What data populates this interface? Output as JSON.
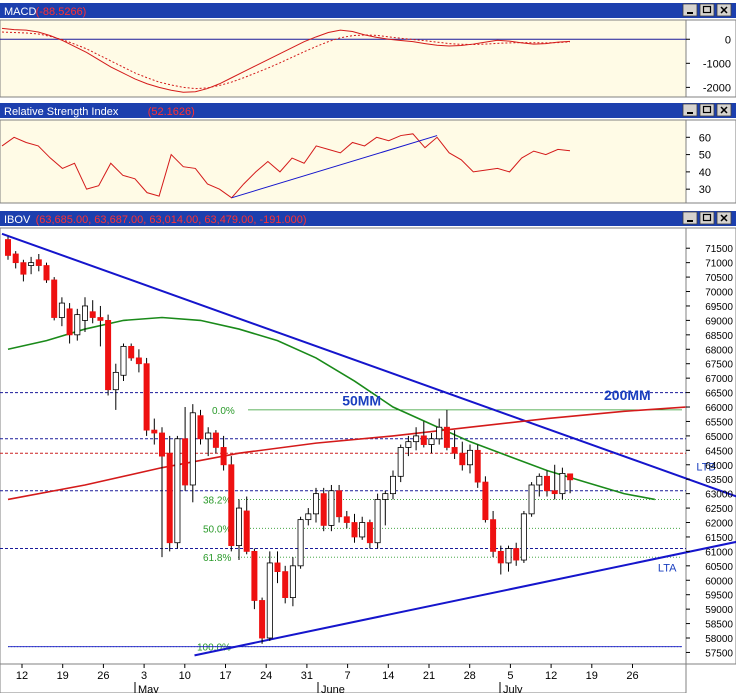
{
  "colors": {
    "title_bar": "#1c3fae",
    "panel_bg": "#fffbe6",
    "up": "#ffffff",
    "down": "#ee1111",
    "line_red": "#d41a1a",
    "ma50": "#1a8a1a",
    "ma200": "#d41a1a",
    "trend": "#1515cc",
    "fib": "#2a9a2a",
    "hline_blue": "#1a1a99",
    "hline_red": "#cc2222"
  },
  "panels": [
    {
      "id": "macd",
      "label": "MACD",
      "value": "(-88.5266)"
    },
    {
      "id": "rsi",
      "label": "Relative Strength Index",
      "value": "(52.1626)"
    },
    {
      "id": "price",
      "label": "IBOV",
      "value": "(63,685.00, 63,687.00, 63,014.00, 63,479.00, -191.000)"
    }
  ],
  "window_icons": [
    "minimize-icon",
    "maximize-icon",
    "close-icon"
  ],
  "chart_data": [
    {
      "type": "line",
      "panel": "macd",
      "ylim": [
        -2400,
        800
      ],
      "y_ticks": [
        "0",
        "-1000",
        "-2000"
      ],
      "x": [
        0,
        2,
        4,
        6,
        8,
        10,
        12,
        14,
        16,
        18,
        20,
        22,
        24,
        26,
        28,
        30,
        32,
        34,
        36,
        38,
        40,
        42,
        44,
        46,
        48,
        50,
        52,
        54,
        56,
        58,
        60,
        62,
        64,
        66,
        68,
        70,
        72,
        74,
        76,
        78,
        80,
        82,
        84,
        86,
        88,
        90,
        92,
        94
      ],
      "series": [
        {
          "values": [
            450,
            400,
            380,
            300,
            150,
            -50,
            -300,
            -550,
            -850,
            -1150,
            -1400,
            -1650,
            -1850,
            -2000,
            -2120,
            -2200,
            -2180,
            -2050,
            -1850,
            -1600,
            -1350,
            -1100,
            -850,
            -600,
            -350,
            -100,
            100,
            280,
            380,
            320,
            180,
            80,
            0,
            -50,
            -100,
            -180,
            -250,
            -280,
            -260,
            -200,
            -120,
            -40,
            -80,
            -150,
            -200,
            -180,
            -120,
            -88.5
          ],
          "style": "solid"
        },
        {
          "values": [
            300,
            280,
            260,
            220,
            120,
            -20,
            -200,
            -400,
            -650,
            -900,
            -1150,
            -1400,
            -1600,
            -1780,
            -1900,
            -2000,
            -2050,
            -2020,
            -1920,
            -1780,
            -1600,
            -1400,
            -1200,
            -980,
            -750,
            -520,
            -300,
            -100,
            60,
            150,
            180,
            160,
            100,
            40,
            -10,
            -60,
            -120,
            -180,
            -210,
            -220,
            -200,
            -170,
            -150,
            -140,
            -145,
            -150,
            -140,
            -110
          ],
          "style": "dashed"
        }
      ]
    },
    {
      "type": "line",
      "panel": "rsi",
      "ylim": [
        22,
        70
      ],
      "y_ticks": [
        "60",
        "50",
        "40",
        "30"
      ],
      "x": [
        0,
        2,
        4,
        6,
        8,
        10,
        12,
        14,
        16,
        18,
        20,
        22,
        24,
        26,
        28,
        30,
        32,
        34,
        36,
        38,
        40,
        42,
        44,
        46,
        48,
        50,
        52,
        54,
        56,
        58,
        60,
        62,
        64,
        66,
        68,
        70,
        72,
        74,
        76,
        78,
        80,
        82,
        84,
        86,
        88,
        90,
        92,
        94
      ],
      "series": [
        {
          "values": [
            55,
            60,
            57,
            55,
            48,
            42,
            45,
            30,
            32,
            45,
            38,
            36,
            28,
            26,
            50,
            43,
            42,
            33,
            30,
            25,
            33,
            40,
            46,
            40,
            48,
            45,
            55,
            53,
            51,
            57,
            55,
            60,
            58,
            61,
            62,
            54,
            60,
            51,
            47,
            40,
            41,
            42,
            40,
            48,
            52,
            50,
            53,
            52.2
          ],
          "style": "solid"
        }
      ]
    },
    {
      "type": "candlestick",
      "panel": "price",
      "ylim": [
        57100,
        72200
      ],
      "y_ticks": [
        "71500",
        "71000",
        "70500",
        "70000",
        "69500",
        "69000",
        "68500",
        "68000",
        "67500",
        "67000",
        "66500",
        "66000",
        "65500",
        "65000",
        "64500",
        "64000",
        "63500",
        "63000",
        "62500",
        "62000",
        "61500",
        "61000",
        "60500",
        "60000",
        "59500",
        "59000",
        "58500",
        "58000",
        "57500"
      ],
      "x_ticks": [
        "12",
        "19",
        "26",
        "3",
        "10",
        "17",
        "24",
        "31",
        "7",
        "14",
        "21",
        "28",
        "5",
        "12",
        "19",
        "26"
      ],
      "month_labels": [
        "May",
        "June",
        "July"
      ],
      "candles": [
        [
          71800,
          71900,
          71100,
          71250
        ],
        [
          71300,
          71400,
          70800,
          71000
        ],
        [
          71000,
          71100,
          70350,
          70600
        ],
        [
          70900,
          71200,
          70600,
          71000
        ],
        [
          71100,
          71300,
          70700,
          70900
        ],
        [
          70900,
          71000,
          70300,
          70400
        ],
        [
          70400,
          70500,
          69000,
          69100
        ],
        [
          69100,
          69800,
          68800,
          69600
        ],
        [
          69400,
          69600,
          68200,
          68500
        ],
        [
          68500,
          69400,
          68300,
          69200
        ],
        [
          69000,
          69800,
          68600,
          69500
        ],
        [
          69300,
          69700,
          68900,
          69100
        ],
        [
          69100,
          69500,
          68100,
          69000
        ],
        [
          69000,
          69200,
          66400,
          66600
        ],
        [
          66600,
          67500,
          65900,
          67200
        ],
        [
          67100,
          68200,
          66900,
          68100
        ],
        [
          68100,
          68200,
          67600,
          67700
        ],
        [
          67700,
          68000,
          67200,
          67500
        ],
        [
          67500,
          67700,
          65000,
          65200
        ],
        [
          65200,
          65600,
          64700,
          65100
        ],
        [
          65100,
          65300,
          60800,
          64300
        ],
        [
          64400,
          65000,
          61000,
          61300
        ],
        [
          61300,
          65000,
          61100,
          64900
        ],
        [
          64900,
          66000,
          63100,
          63300
        ],
        [
          63300,
          66100,
          62700,
          65800
        ],
        [
          65700,
          65900,
          64700,
          64900
        ],
        [
          64900,
          65300,
          64300,
          65100
        ],
        [
          65100,
          65200,
          64400,
          64600
        ],
        [
          64600,
          65000,
          63800,
          64000
        ],
        [
          64000,
          64300,
          61000,
          61200
        ],
        [
          61200,
          62800,
          60700,
          62500
        ],
        [
          62400,
          62900,
          60900,
          61000
        ],
        [
          61000,
          61100,
          59000,
          59300
        ],
        [
          59300,
          59400,
          57800,
          58000
        ],
        [
          58000,
          61000,
          57900,
          60600
        ],
        [
          60600,
          61000,
          59900,
          60300
        ],
        [
          60300,
          60500,
          59200,
          59400
        ],
        [
          59400,
          60800,
          59100,
          60500
        ],
        [
          60500,
          62200,
          60400,
          62100
        ],
        [
          62100,
          62500,
          61900,
          62300
        ],
        [
          62300,
          63200,
          62000,
          63000
        ],
        [
          63000,
          63200,
          61700,
          61900
        ],
        [
          61900,
          63300,
          61700,
          63100
        ],
        [
          63100,
          63300,
          62000,
          62200
        ],
        [
          62200,
          62400,
          61800,
          62000
        ],
        [
          62000,
          62300,
          61300,
          61500
        ],
        [
          61500,
          62200,
          61400,
          62000
        ],
        [
          62000,
          62100,
          61100,
          61300
        ],
        [
          61300,
          63000,
          61100,
          62800
        ],
        [
          62800,
          63100,
          61900,
          63000
        ],
        [
          63000,
          63800,
          62800,
          63600
        ],
        [
          63600,
          64700,
          63400,
          64600
        ],
        [
          64600,
          65000,
          64300,
          64800
        ],
        [
          64800,
          65300,
          64500,
          65000
        ],
        [
          65000,
          65500,
          64600,
          64700
        ],
        [
          64700,
          65100,
          64400,
          64900
        ],
        [
          64900,
          65600,
          64700,
          65300
        ],
        [
          65300,
          65900,
          64500,
          64600
        ],
        [
          64600,
          65200,
          64200,
          64400
        ],
        [
          64400,
          64800,
          63800,
          64000
        ],
        [
          64000,
          64700,
          63700,
          64500
        ],
        [
          64500,
          64700,
          63200,
          63400
        ],
        [
          63400,
          63600,
          62000,
          62100
        ],
        [
          62100,
          62400,
          60800,
          61000
        ],
        [
          61000,
          61200,
          60200,
          60600
        ],
        [
          60600,
          61200,
          60300,
          61100
        ],
        [
          61100,
          61300,
          60500,
          60700
        ],
        [
          60700,
          62400,
          60600,
          62300
        ],
        [
          62300,
          63400,
          62200,
          63300
        ],
        [
          63300,
          63700,
          62900,
          63600
        ],
        [
          63600,
          63800,
          62900,
          63100
        ],
        [
          63100,
          64000,
          62800,
          63000
        ],
        [
          63000,
          63900,
          62800,
          63700
        ],
        [
          63685,
          63687,
          63014,
          63479
        ]
      ],
      "ma50": [
        [
          0,
          68000
        ],
        [
          5,
          68300
        ],
        [
          10,
          68700
        ],
        [
          15,
          69000
        ],
        [
          20,
          69100
        ],
        [
          25,
          69000
        ],
        [
          30,
          68700
        ],
        [
          35,
          68300
        ],
        [
          40,
          67700
        ],
        [
          45,
          66900
        ],
        [
          50,
          66000
        ],
        [
          55,
          65400
        ],
        [
          60,
          64800
        ],
        [
          65,
          64300
        ],
        [
          70,
          63800
        ],
        [
          75,
          63400
        ],
        [
          80,
          63000
        ],
        [
          84,
          62800
        ]
      ],
      "ma200": [
        [
          0,
          62800
        ],
        [
          10,
          63300
        ],
        [
          20,
          63900
        ],
        [
          30,
          64400
        ],
        [
          40,
          64750
        ],
        [
          50,
          65000
        ],
        [
          60,
          65300
        ],
        [
          70,
          65600
        ],
        [
          80,
          65850
        ],
        [
          88,
          66000
        ]
      ],
      "annotations": [
        {
          "text": "50MM",
          "x": 46,
          "y": 66050,
          "color": "#1a3fbf",
          "bold": true
        },
        {
          "text": "200MM",
          "x": 80,
          "y": 66250,
          "color": "#1a3fbf",
          "bold": true
        },
        {
          "text": "LTB",
          "x": 92,
          "y": 63800,
          "color": "#1a3fbf",
          "bold": false
        },
        {
          "text": "LTA",
          "x": 87,
          "y": 60300,
          "color": "#1a3fbf",
          "bold": false
        }
      ],
      "fib_levels": [
        {
          "label": "0.0%",
          "value": 65900
        },
        {
          "label": "38.2%",
          "value": 62800
        },
        {
          "label": "50.0%",
          "value": 61800
        },
        {
          "label": "61.8%",
          "value": 60800
        },
        {
          "label": "100.0%",
          "value": 57700
        }
      ],
      "hlines_blue": [
        66500,
        64900,
        63100,
        61100
      ],
      "hlines_red": [
        64400
      ],
      "trendlines": [
        {
          "name": "LTB",
          "from": [
            0,
            72000
          ],
          "to": [
            103,
            62100
          ]
        },
        {
          "name": "LTA",
          "from": [
            25,
            57400
          ],
          "to": [
            103,
            61800
          ]
        }
      ]
    }
  ],
  "tick_labels_x": [
    "12",
    "19",
    "26",
    "3",
    "10",
    "17",
    "24",
    "31",
    "7",
    "14",
    "21",
    "28",
    "5",
    "12",
    "19",
    "26"
  ],
  "month_labels": [
    "May",
    "June",
    "July"
  ]
}
